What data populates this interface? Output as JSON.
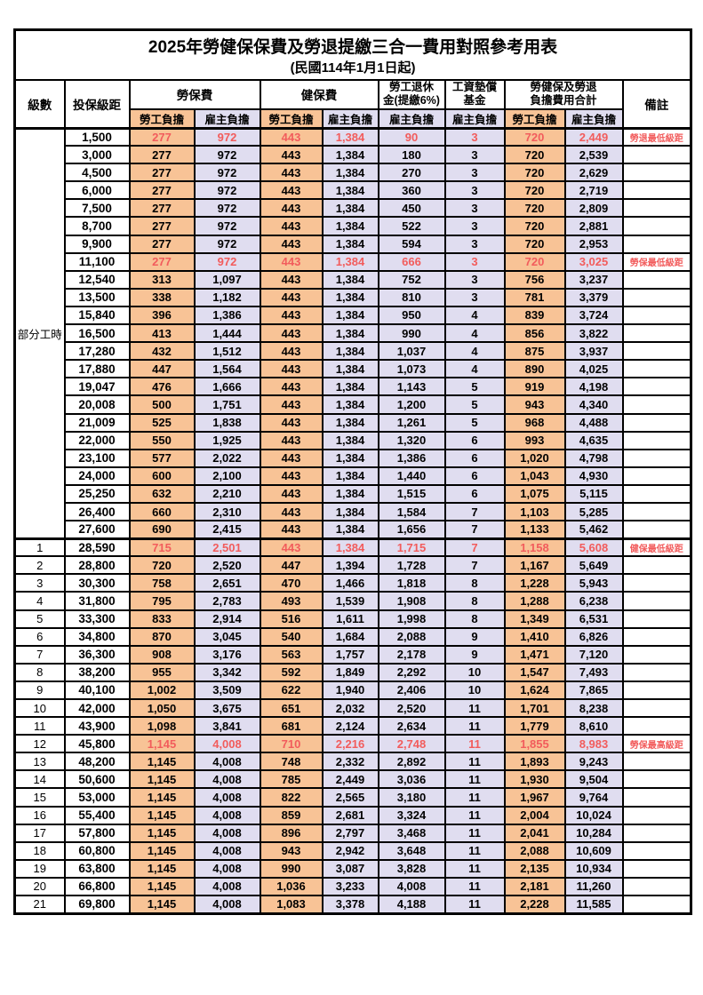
{
  "title": "2025年勞健保保費及勞退提繳三合一費用對照參考用表",
  "subtitle": "(民國114年1月1日起)",
  "colors": {
    "employee_bg": "#F8C396",
    "employer_bg": "#E0DDF0",
    "highlight_text": "#F25C5C"
  },
  "columns": {
    "level": "級數",
    "bracket": "投保級距",
    "labor_insurance": "勞保費",
    "health_insurance": "健保費",
    "pension_line1": "勞工退休",
    "pension_line2": "金(提繳6%)",
    "wage_fund_line1": "工資墊償",
    "wage_fund_line2": "基金",
    "total_line1": "勞健保及勞退",
    "total_line2": "負擔費用合計",
    "remark": "備註",
    "employee_share": "勞工負擔",
    "employer_share": "雇主負擔"
  },
  "rows": [
    {
      "level": "部分工時",
      "level_rowspan": 23,
      "bracket": "1,500",
      "fees": [
        "277",
        "972",
        "443",
        "1,384",
        "90",
        "3",
        "720",
        "2,449"
      ],
      "remark": "勞退最低級距",
      "highlight": true
    },
    {
      "bracket": "3,000",
      "fees": [
        "277",
        "972",
        "443",
        "1,384",
        "180",
        "3",
        "720",
        "2,539"
      ],
      "remark": ""
    },
    {
      "bracket": "4,500",
      "fees": [
        "277",
        "972",
        "443",
        "1,384",
        "270",
        "3",
        "720",
        "2,629"
      ],
      "remark": ""
    },
    {
      "bracket": "6,000",
      "fees": [
        "277",
        "972",
        "443",
        "1,384",
        "360",
        "3",
        "720",
        "2,719"
      ],
      "remark": ""
    },
    {
      "bracket": "7,500",
      "fees": [
        "277",
        "972",
        "443",
        "1,384",
        "450",
        "3",
        "720",
        "2,809"
      ],
      "remark": ""
    },
    {
      "bracket": "8,700",
      "fees": [
        "277",
        "972",
        "443",
        "1,384",
        "522",
        "3",
        "720",
        "2,881"
      ],
      "remark": ""
    },
    {
      "bracket": "9,900",
      "fees": [
        "277",
        "972",
        "443",
        "1,384",
        "594",
        "3",
        "720",
        "2,953"
      ],
      "remark": ""
    },
    {
      "bracket": "11,100",
      "fees": [
        "277",
        "972",
        "443",
        "1,384",
        "666",
        "3",
        "720",
        "3,025"
      ],
      "remark": "勞保最低級距",
      "highlight": true
    },
    {
      "bracket": "12,540",
      "fees": [
        "313",
        "1,097",
        "443",
        "1,384",
        "752",
        "3",
        "756",
        "3,237"
      ],
      "remark": ""
    },
    {
      "bracket": "13,500",
      "fees": [
        "338",
        "1,182",
        "443",
        "1,384",
        "810",
        "3",
        "781",
        "3,379"
      ],
      "remark": ""
    },
    {
      "bracket": "15,840",
      "fees": [
        "396",
        "1,386",
        "443",
        "1,384",
        "950",
        "4",
        "839",
        "3,724"
      ],
      "remark": ""
    },
    {
      "bracket": "16,500",
      "fees": [
        "413",
        "1,444",
        "443",
        "1,384",
        "990",
        "4",
        "856",
        "3,822"
      ],
      "remark": ""
    },
    {
      "bracket": "17,280",
      "fees": [
        "432",
        "1,512",
        "443",
        "1,384",
        "1,037",
        "4",
        "875",
        "3,937"
      ],
      "remark": ""
    },
    {
      "bracket": "17,880",
      "fees": [
        "447",
        "1,564",
        "443",
        "1,384",
        "1,073",
        "4",
        "890",
        "4,025"
      ],
      "remark": ""
    },
    {
      "bracket": "19,047",
      "fees": [
        "476",
        "1,666",
        "443",
        "1,384",
        "1,143",
        "5",
        "919",
        "4,198"
      ],
      "remark": ""
    },
    {
      "bracket": "20,008",
      "fees": [
        "500",
        "1,751",
        "443",
        "1,384",
        "1,200",
        "5",
        "943",
        "4,340"
      ],
      "remark": ""
    },
    {
      "bracket": "21,009",
      "fees": [
        "525",
        "1,838",
        "443",
        "1,384",
        "1,261",
        "5",
        "968",
        "4,488"
      ],
      "remark": ""
    },
    {
      "bracket": "22,000",
      "fees": [
        "550",
        "1,925",
        "443",
        "1,384",
        "1,320",
        "6",
        "993",
        "4,635"
      ],
      "remark": ""
    },
    {
      "bracket": "23,100",
      "fees": [
        "577",
        "2,022",
        "443",
        "1,384",
        "1,386",
        "6",
        "1,020",
        "4,798"
      ],
      "remark": ""
    },
    {
      "bracket": "24,000",
      "fees": [
        "600",
        "2,100",
        "443",
        "1,384",
        "1,440",
        "6",
        "1,043",
        "4,930"
      ],
      "remark": ""
    },
    {
      "bracket": "25,250",
      "fees": [
        "632",
        "2,210",
        "443",
        "1,384",
        "1,515",
        "6",
        "1,075",
        "5,115"
      ],
      "remark": ""
    },
    {
      "bracket": "26,400",
      "fees": [
        "660",
        "2,310",
        "443",
        "1,384",
        "1,584",
        "7",
        "1,103",
        "5,285"
      ],
      "remark": ""
    },
    {
      "bracket": "27,600",
      "fees": [
        "690",
        "2,415",
        "443",
        "1,384",
        "1,656",
        "7",
        "1,133",
        "5,462"
      ],
      "remark": ""
    },
    {
      "level": "1",
      "bracket": "28,590",
      "fees": [
        "715",
        "2,501",
        "443",
        "1,384",
        "1,715",
        "7",
        "1,158",
        "5,608"
      ],
      "remark": "健保最低級距",
      "highlight": true
    },
    {
      "level": "2",
      "bracket": "28,800",
      "fees": [
        "720",
        "2,520",
        "447",
        "1,394",
        "1,728",
        "7",
        "1,167",
        "5,649"
      ],
      "remark": ""
    },
    {
      "level": "3",
      "bracket": "30,300",
      "fees": [
        "758",
        "2,651",
        "470",
        "1,466",
        "1,818",
        "8",
        "1,228",
        "5,943"
      ],
      "remark": ""
    },
    {
      "level": "4",
      "bracket": "31,800",
      "fees": [
        "795",
        "2,783",
        "493",
        "1,539",
        "1,908",
        "8",
        "1,288",
        "6,238"
      ],
      "remark": ""
    },
    {
      "level": "5",
      "bracket": "33,300",
      "fees": [
        "833",
        "2,914",
        "516",
        "1,611",
        "1,998",
        "8",
        "1,349",
        "6,531"
      ],
      "remark": ""
    },
    {
      "level": "6",
      "bracket": "34,800",
      "fees": [
        "870",
        "3,045",
        "540",
        "1,684",
        "2,088",
        "9",
        "1,410",
        "6,826"
      ],
      "remark": ""
    },
    {
      "level": "7",
      "bracket": "36,300",
      "fees": [
        "908",
        "3,176",
        "563",
        "1,757",
        "2,178",
        "9",
        "1,471",
        "7,120"
      ],
      "remark": ""
    },
    {
      "level": "8",
      "bracket": "38,200",
      "fees": [
        "955",
        "3,342",
        "592",
        "1,849",
        "2,292",
        "10",
        "1,547",
        "7,493"
      ],
      "remark": ""
    },
    {
      "level": "9",
      "bracket": "40,100",
      "fees": [
        "1,002",
        "3,509",
        "622",
        "1,940",
        "2,406",
        "10",
        "1,624",
        "7,865"
      ],
      "remark": ""
    },
    {
      "level": "10",
      "bracket": "42,000",
      "fees": [
        "1,050",
        "3,675",
        "651",
        "2,032",
        "2,520",
        "11",
        "1,701",
        "8,238"
      ],
      "remark": ""
    },
    {
      "level": "11",
      "bracket": "43,900",
      "fees": [
        "1,098",
        "3,841",
        "681",
        "2,124",
        "2,634",
        "11",
        "1,779",
        "8,610"
      ],
      "remark": ""
    },
    {
      "level": "12",
      "bracket": "45,800",
      "fees": [
        "1,145",
        "4,008",
        "710",
        "2,216",
        "2,748",
        "11",
        "1,855",
        "8,983"
      ],
      "remark": "勞保最高級距",
      "highlight": true
    },
    {
      "level": "13",
      "bracket": "48,200",
      "fees": [
        "1,145",
        "4,008",
        "748",
        "2,332",
        "2,892",
        "11",
        "1,893",
        "9,243"
      ],
      "remark": ""
    },
    {
      "level": "14",
      "bracket": "50,600",
      "fees": [
        "1,145",
        "4,008",
        "785",
        "2,449",
        "3,036",
        "11",
        "1,930",
        "9,504"
      ],
      "remark": ""
    },
    {
      "level": "15",
      "bracket": "53,000",
      "fees": [
        "1,145",
        "4,008",
        "822",
        "2,565",
        "3,180",
        "11",
        "1,967",
        "9,764"
      ],
      "remark": ""
    },
    {
      "level": "16",
      "bracket": "55,400",
      "fees": [
        "1,145",
        "4,008",
        "859",
        "2,681",
        "3,324",
        "11",
        "2,004",
        "10,024"
      ],
      "remark": ""
    },
    {
      "level": "17",
      "bracket": "57,800",
      "fees": [
        "1,145",
        "4,008",
        "896",
        "2,797",
        "3,468",
        "11",
        "2,041",
        "10,284"
      ],
      "remark": ""
    },
    {
      "level": "18",
      "bracket": "60,800",
      "fees": [
        "1,145",
        "4,008",
        "943",
        "2,942",
        "3,648",
        "11",
        "2,088",
        "10,609"
      ],
      "remark": ""
    },
    {
      "level": "19",
      "bracket": "63,800",
      "fees": [
        "1,145",
        "4,008",
        "990",
        "3,087",
        "3,828",
        "11",
        "2,135",
        "10,934"
      ],
      "remark": ""
    },
    {
      "level": "20",
      "bracket": "66,800",
      "fees": [
        "1,145",
        "4,008",
        "1,036",
        "3,233",
        "4,008",
        "11",
        "2,181",
        "11,260"
      ],
      "remark": ""
    },
    {
      "level": "21",
      "bracket": "69,800",
      "fees": [
        "1,145",
        "4,008",
        "1,083",
        "3,378",
        "4,188",
        "11",
        "2,228",
        "11,585"
      ],
      "remark": ""
    }
  ]
}
